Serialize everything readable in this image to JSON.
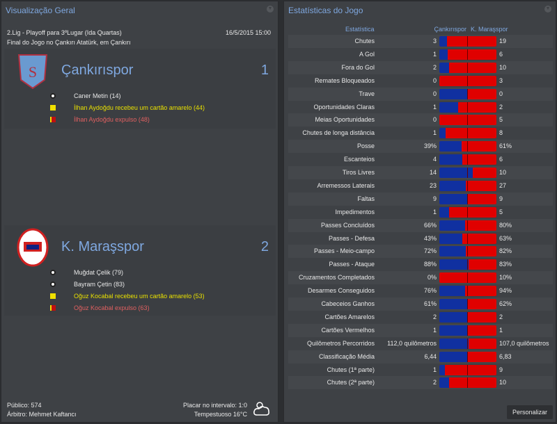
{
  "left": {
    "title": "Visualização Geral",
    "competition": "2.Lig - Playoff para 3ºLugar (Ida Quartas)",
    "datetime": "16/5/2015 15:00",
    "venue": "Final do Jogo no Çankırı Atatürk, em Çankırı",
    "home": {
      "name": "Çankırıspor",
      "score": "1",
      "events": [
        {
          "type": "goal",
          "text": "Caner Metin (14)"
        },
        {
          "type": "yellow",
          "text": "İlhan Aydoğdu recebeu um cartão amarelo (44)"
        },
        {
          "type": "red",
          "text": "İlhan Aydoğdu expulso (48)"
        }
      ]
    },
    "away": {
      "name": "K. Maraşspor",
      "score": "2",
      "events": [
        {
          "type": "goal",
          "text": "Muğdat Çelik (79)"
        },
        {
          "type": "goal",
          "text": "Bayram Çetin (83)"
        },
        {
          "type": "yellow",
          "text": "Oğuz Kocabal recebeu um cartão amarelo (53)"
        },
        {
          "type": "red",
          "text": "Oğuz Kocabal expulso (63)"
        }
      ]
    },
    "attendance": "Público: 574",
    "referee": "Árbitro: Mehmet Kaftancı",
    "halftime": "Placar no intervalo: 1:0",
    "weather": "Tempestuoso 16°C",
    "weather_icon": "cloud-icon"
  },
  "right": {
    "title": "Estatísticas do Jogo",
    "col_stat": "Estatística",
    "col_home": "Çankırıspor",
    "col_away": "K. Maraşspor",
    "customize": "Personalizar",
    "home_color": "#1030a0",
    "away_color": "#e00000",
    "stats": [
      {
        "label": "Chutes",
        "home": "3",
        "away": "19",
        "h": 3,
        "a": 19
      },
      {
        "label": "A Gol",
        "home": "1",
        "away": "6",
        "h": 1,
        "a": 6
      },
      {
        "label": "Fora do Gol",
        "home": "2",
        "away": "10",
        "h": 2,
        "a": 10
      },
      {
        "label": "Remates Bloqueados",
        "home": "0",
        "away": "3",
        "h": 0,
        "a": 3
      },
      {
        "label": "Trave",
        "home": "0",
        "away": "0",
        "h": 0,
        "a": 0
      },
      {
        "label": "Oportunidades Claras",
        "home": "1",
        "away": "2",
        "h": 1,
        "a": 2
      },
      {
        "label": "Meias Oportunidades",
        "home": "0",
        "away": "5",
        "h": 0,
        "a": 5
      },
      {
        "label": "Chutes de longa distância",
        "home": "1",
        "away": "8",
        "h": 1,
        "a": 8
      },
      {
        "label": "Posse",
        "home": "39%",
        "away": "61%",
        "h": 39,
        "a": 61
      },
      {
        "label": "Escanteios",
        "home": "4",
        "away": "6",
        "h": 4,
        "a": 6
      },
      {
        "label": "Tiros Livres",
        "home": "14",
        "away": "10",
        "h": 14,
        "a": 10
      },
      {
        "label": "Arremessos Laterais",
        "home": "23",
        "away": "27",
        "h": 23,
        "a": 27
      },
      {
        "label": "Faltas",
        "home": "9",
        "away": "9",
        "h": 9,
        "a": 9
      },
      {
        "label": "Impedimentos",
        "home": "1",
        "away": "5",
        "h": 1,
        "a": 5
      },
      {
        "label": "Passes Concluídos",
        "home": "66%",
        "away": "80%",
        "h": 66,
        "a": 80
      },
      {
        "label": "Passes - Defesa",
        "home": "43%",
        "away": "63%",
        "h": 43,
        "a": 63
      },
      {
        "label": "Passes - Meio-campo",
        "home": "72%",
        "away": "82%",
        "h": 72,
        "a": 82
      },
      {
        "label": "Passes - Ataque",
        "home": "88%",
        "away": "83%",
        "h": 88,
        "a": 83
      },
      {
        "label": "Cruzamentos Completados",
        "home": "0%",
        "away": "10%",
        "h": 0,
        "a": 10
      },
      {
        "label": "Desarmes Conseguidos",
        "home": "76%",
        "away": "94%",
        "h": 76,
        "a": 94
      },
      {
        "label": "Cabeceios Ganhos",
        "home": "61%",
        "away": "62%",
        "h": 61,
        "a": 62
      },
      {
        "label": "Cartões Amarelos",
        "home": "2",
        "away": "2",
        "h": 2,
        "a": 2
      },
      {
        "label": "Cartões Vermelhos",
        "home": "1",
        "away": "1",
        "h": 1,
        "a": 1
      },
      {
        "label": "Quilômetros Percorridos",
        "home": "112,0 quilômetros",
        "away": "107,0 quilômetros",
        "h": 112,
        "a": 107
      },
      {
        "label": "Classificação Média",
        "home": "6,44",
        "away": "6,83",
        "h": 6.44,
        "a": 6.83
      },
      {
        "label": "Chutes (1ª parte)",
        "home": "1",
        "away": "9",
        "h": 1,
        "a": 9
      },
      {
        "label": "Chutes (2ª parte)",
        "home": "2",
        "away": "10",
        "h": 2,
        "a": 10
      }
    ]
  }
}
